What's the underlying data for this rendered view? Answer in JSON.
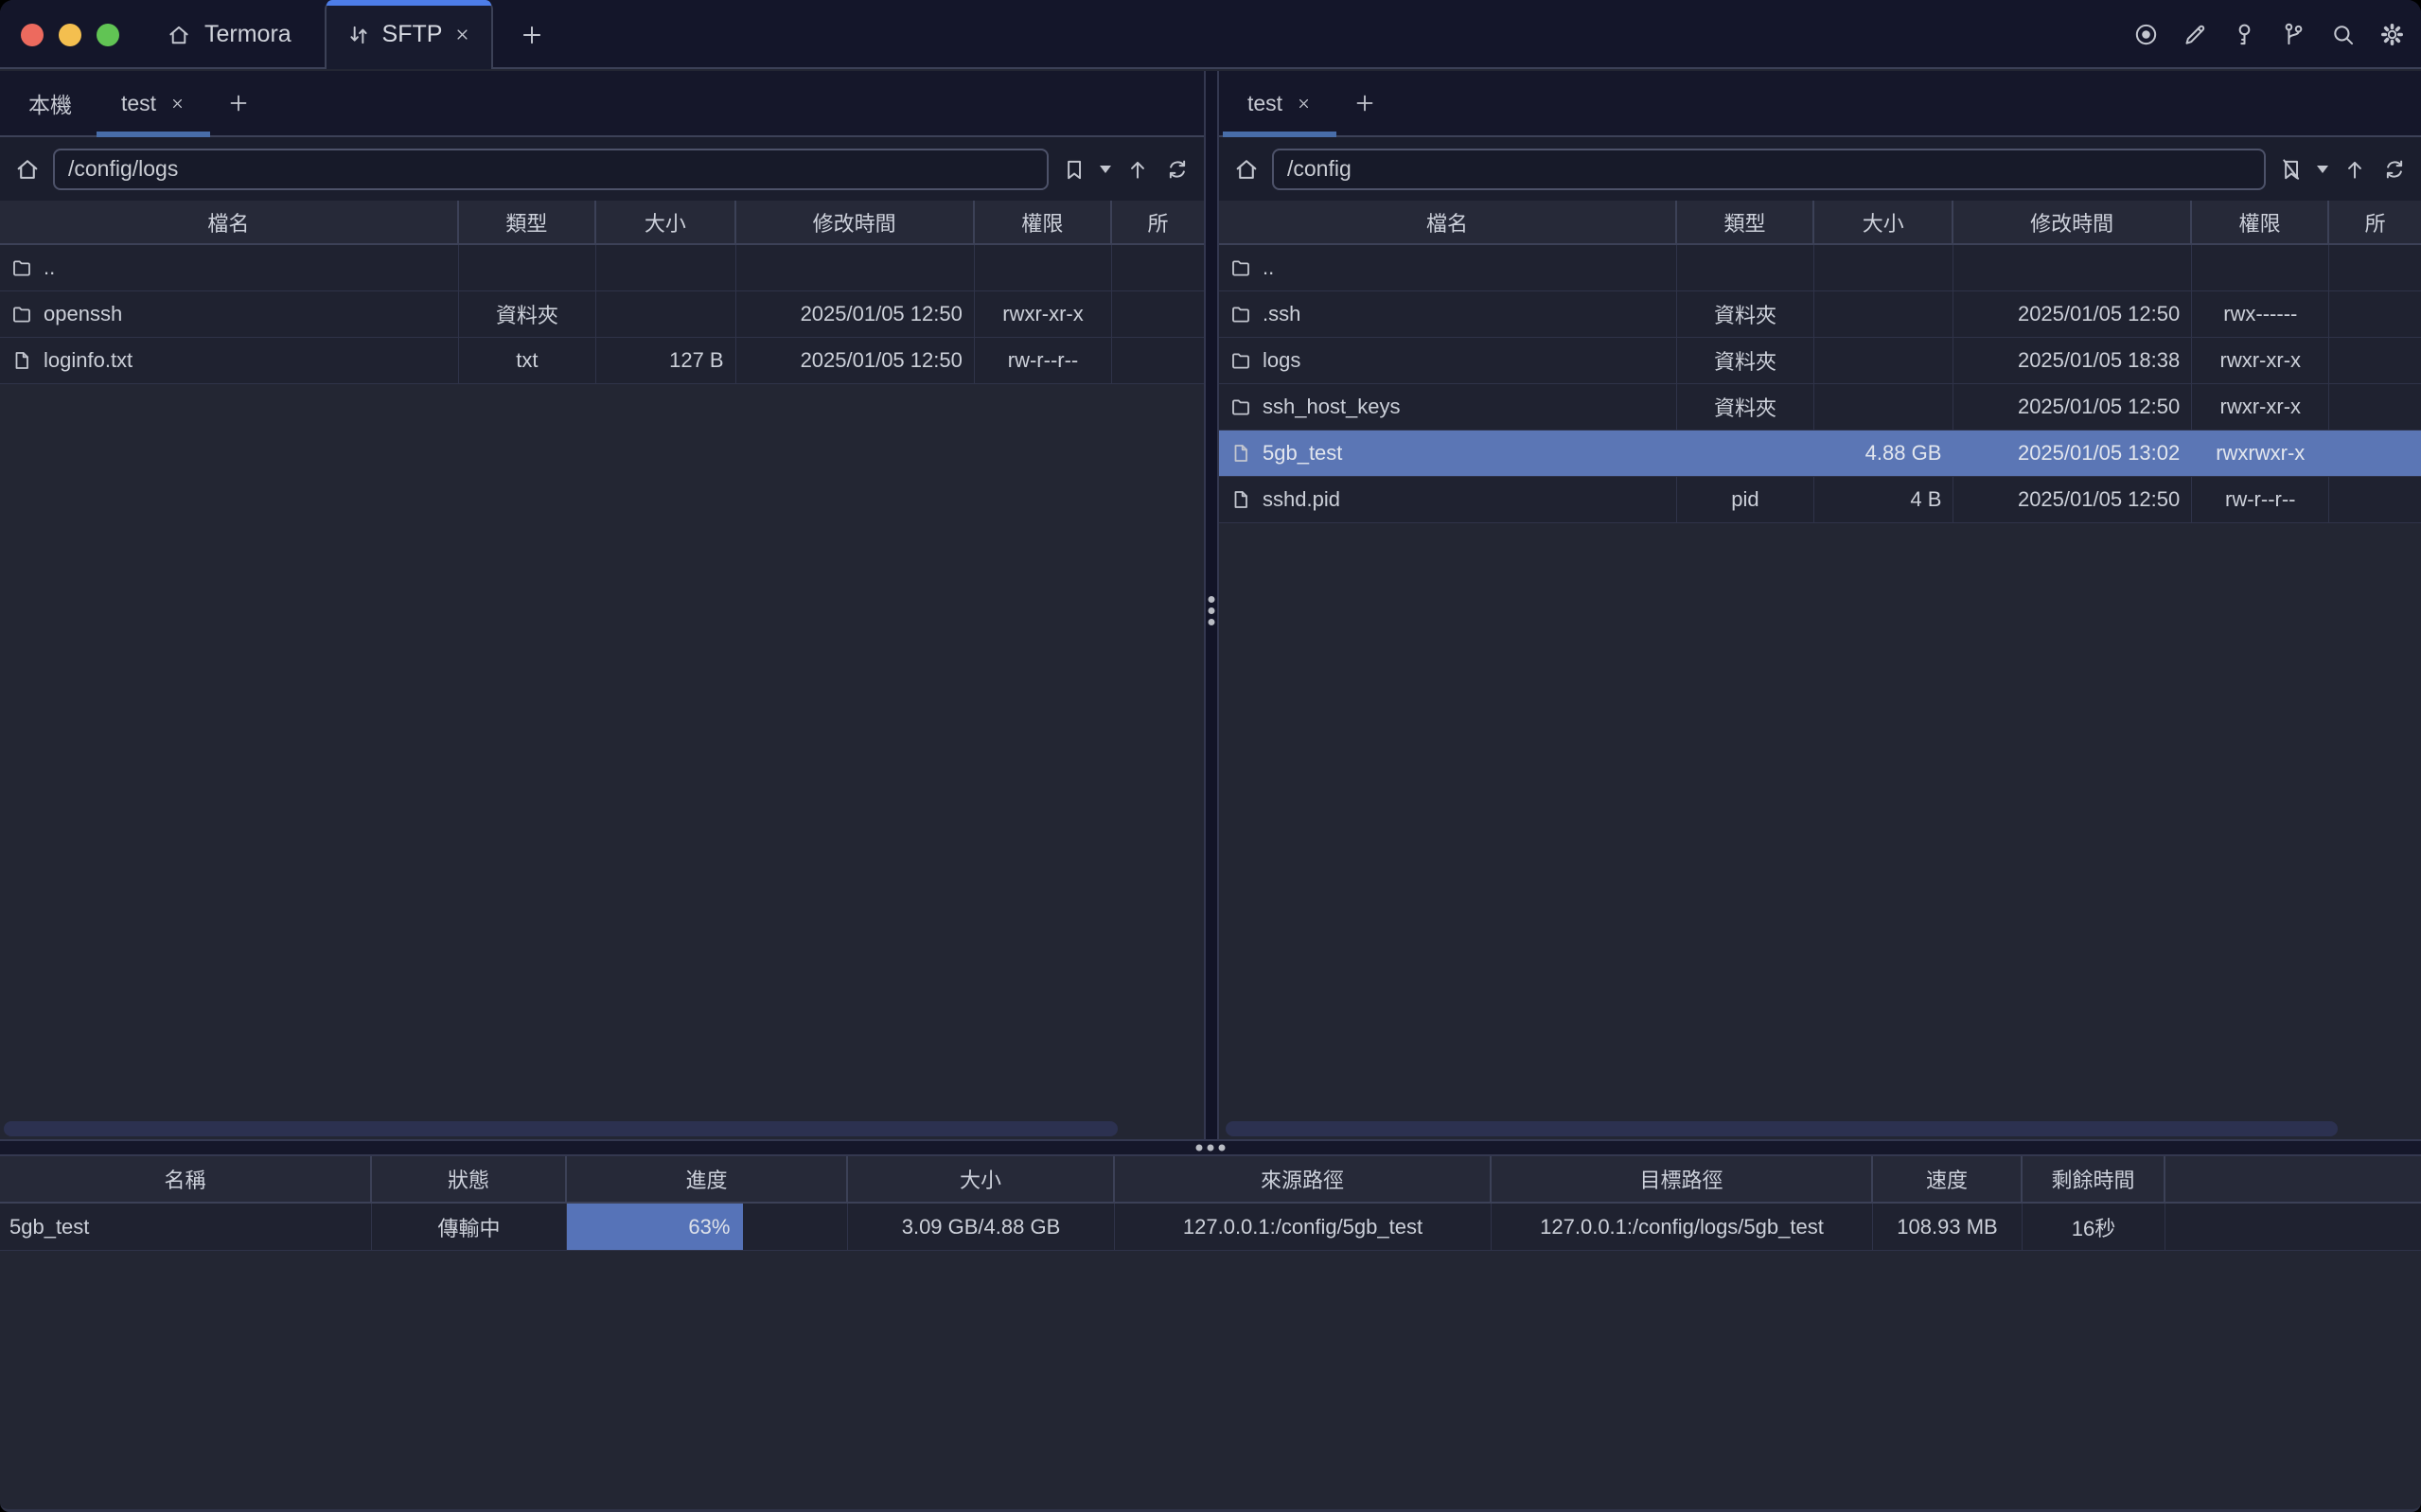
{
  "titlebar": {
    "app_tab_label": "Termora",
    "sftp_tab_label": "SFTP",
    "action_icons": [
      "record-icon",
      "edit-icon",
      "key-icon",
      "branch-icon",
      "search-icon",
      "settings-icon"
    ],
    "accent_color": "#4d7de8"
  },
  "left_pane": {
    "tabs": [
      {
        "label": "本機",
        "closable": false,
        "active": false
      },
      {
        "label": "test",
        "closable": true,
        "active": true
      }
    ],
    "path": "/config/logs",
    "columns": {
      "name": "檔名",
      "type": "類型",
      "size": "大小",
      "mtime": "修改時間",
      "perm": "權限",
      "owner": "所"
    },
    "rows": [
      {
        "icon": "folder",
        "name": "..",
        "type": "",
        "size": "",
        "mtime": "",
        "perm": ""
      },
      {
        "icon": "folder",
        "name": "openssh",
        "type": "資料夾",
        "size": "",
        "mtime": "2025/01/05 12:50",
        "perm": "rwxr-xr-x"
      },
      {
        "icon": "file",
        "name": "loginfo.txt",
        "type": "txt",
        "size": "127 B",
        "mtime": "2025/01/05 12:50",
        "perm": "rw-r--r--"
      }
    ]
  },
  "right_pane": {
    "tabs": [
      {
        "label": "test",
        "closable": true,
        "active": true
      }
    ],
    "path": "/config",
    "columns": {
      "name": "檔名",
      "type": "類型",
      "size": "大小",
      "mtime": "修改時間",
      "perm": "權限",
      "owner": "所"
    },
    "rows": [
      {
        "icon": "folder",
        "name": "..",
        "type": "",
        "size": "",
        "mtime": "",
        "perm": "",
        "selected": false
      },
      {
        "icon": "folder",
        "name": ".ssh",
        "type": "資料夾",
        "size": "",
        "mtime": "2025/01/05 12:50",
        "perm": "rwx------",
        "selected": false
      },
      {
        "icon": "folder",
        "name": "logs",
        "type": "資料夾",
        "size": "",
        "mtime": "2025/01/05 18:38",
        "perm": "rwxr-xr-x",
        "selected": false
      },
      {
        "icon": "folder",
        "name": "ssh_host_keys",
        "type": "資料夾",
        "size": "",
        "mtime": "2025/01/05 12:50",
        "perm": "rwxr-xr-x",
        "selected": false
      },
      {
        "icon": "file",
        "name": "5gb_test",
        "type": "",
        "size": "4.88 GB",
        "mtime": "2025/01/05 13:02",
        "perm": "rwxrwxr-x",
        "selected": true
      },
      {
        "icon": "file",
        "name": "sshd.pid",
        "type": "pid",
        "size": "4 B",
        "mtime": "2025/01/05 12:50",
        "perm": "rw-r--r--",
        "selected": false
      }
    ]
  },
  "transfers": {
    "columns": {
      "name": "名稱",
      "status": "狀態",
      "progress": "進度",
      "size": "大小",
      "source": "來源路徑",
      "target": "目標路徑",
      "speed": "速度",
      "eta": "剩餘時間"
    },
    "rows": [
      {
        "name": "5gb_test",
        "status": "傳輸中",
        "progress_percent": 63,
        "progress_label": "63%",
        "size": "3.09 GB/4.88 GB",
        "source": "127.0.0.1:/config/5gb_test",
        "target": "127.0.0.1:/config/logs/5gb_test",
        "speed": "108.93 MB",
        "eta": "16秒"
      }
    ]
  },
  "colors": {
    "selection": "#5b76b5",
    "progress_fill": "#5673b8",
    "tab_accent": "#4d7de8",
    "pane_tab_underline": "#486da9",
    "traffic_lights": [
      "#ed6a5e",
      "#f4bf4f",
      "#61c454"
    ]
  }
}
